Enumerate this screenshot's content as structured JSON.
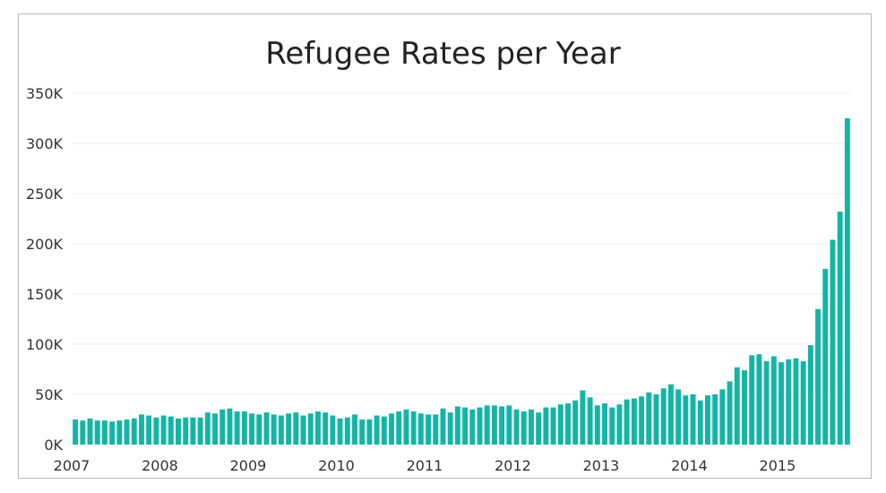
{
  "chart_data": {
    "type": "bar",
    "title": "Refugee Rates per Year",
    "xlabel": "",
    "ylabel": "",
    "ylim": [
      0,
      350000
    ],
    "y_ticks": [
      "0K",
      "50K",
      "100K",
      "150K",
      "200K",
      "250K",
      "300K",
      "350K"
    ],
    "x_ticks": [
      "2007",
      "2008",
      "2009",
      "2010",
      "2011",
      "2012",
      "2013",
      "2014",
      "2015"
    ],
    "grid": true,
    "bar_color": "#12b5a6",
    "start": "2007-01",
    "frequency": "monthly",
    "values": [
      25000,
      24000,
      26000,
      24000,
      24000,
      23000,
      24000,
      25000,
      26000,
      30000,
      29000,
      27000,
      29000,
      28000,
      26000,
      27000,
      27000,
      27000,
      32000,
      31000,
      35000,
      36000,
      33000,
      33000,
      31000,
      30000,
      32000,
      30000,
      29000,
      31000,
      32000,
      29000,
      31000,
      33000,
      32000,
      29000,
      26000,
      27000,
      30000,
      25000,
      25000,
      29000,
      28000,
      31000,
      33000,
      35000,
      33000,
      31000,
      30000,
      30000,
      36000,
      32000,
      38000,
      37000,
      35000,
      37000,
      39000,
      39000,
      38000,
      39000,
      35000,
      33000,
      35000,
      32000,
      37000,
      37000,
      40000,
      41000,
      44000,
      54000,
      47000,
      39000,
      41000,
      37000,
      40000,
      45000,
      46000,
      48000,
      52000,
      50000,
      56000,
      60000,
      55000,
      49000,
      50000,
      44000,
      49000,
      50000,
      55000,
      63000,
      77000,
      74000,
      89000,
      90000,
      83000,
      88000,
      82000,
      85000,
      86000,
      83000,
      99000,
      135000,
      175000,
      204000,
      232000,
      325000
    ]
  }
}
